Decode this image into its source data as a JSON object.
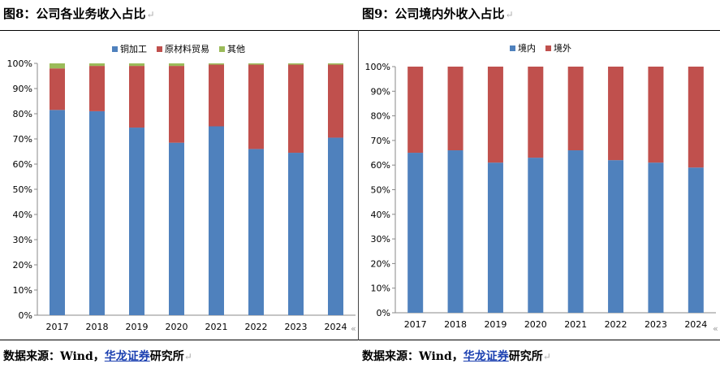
{
  "left": {
    "title": "图8：公司各业务收入占比",
    "source_prefix": "数据来源：Wind，",
    "source_link": "华龙证券",
    "source_suffix": "研究所"
  },
  "right": {
    "title": "图9：公司境内外收入占比",
    "source_prefix": "数据来源：Wind，",
    "source_link": "华龙证券",
    "source_suffix": "研究所"
  },
  "return_mark": "↵",
  "edge_mark": "«",
  "chart_data": [
    {
      "type": "bar",
      "stacked": true,
      "title": "",
      "xlabel": "",
      "ylabel": "",
      "ylim": [
        0,
        100
      ],
      "y_ticks": [
        "0%",
        "10%",
        "20%",
        "30%",
        "40%",
        "50%",
        "60%",
        "70%",
        "80%",
        "90%",
        "100%"
      ],
      "categories": [
        "2017",
        "2018",
        "2019",
        "2020",
        "2021",
        "2022",
        "2023",
        "2024"
      ],
      "legend_position": "top-center",
      "series": [
        {
          "name": "铜加工",
          "color": "#4f81bd",
          "values": [
            81.5,
            81,
            74.5,
            68.5,
            75,
            66,
            64.5,
            70.5
          ]
        },
        {
          "name": "原材料贸易",
          "color": "#c0504d",
          "values": [
            16.5,
            18,
            24.5,
            30.5,
            24.5,
            33.5,
            35,
            29
          ]
        },
        {
          "name": "其他",
          "color": "#9bbb59",
          "values": [
            2,
            1,
            1,
            1,
            0.5,
            0.5,
            0.5,
            0.5
          ]
        }
      ]
    },
    {
      "type": "bar",
      "stacked": true,
      "title": "",
      "xlabel": "",
      "ylabel": "",
      "ylim": [
        0,
        100
      ],
      "y_ticks": [
        "0%",
        "10%",
        "20%",
        "30%",
        "40%",
        "50%",
        "60%",
        "70%",
        "80%",
        "90%",
        "100%"
      ],
      "categories": [
        "2017",
        "2018",
        "2019",
        "2020",
        "2021",
        "2022",
        "2023",
        "2024"
      ],
      "legend_position": "top-center",
      "series": [
        {
          "name": "境内",
          "color": "#4f81bd",
          "values": [
            65,
            66,
            61,
            63,
            66,
            62,
            61,
            59
          ]
        },
        {
          "name": "境外",
          "color": "#c0504d",
          "values": [
            35,
            34,
            39,
            37,
            34,
            38,
            39,
            41
          ]
        }
      ]
    }
  ]
}
